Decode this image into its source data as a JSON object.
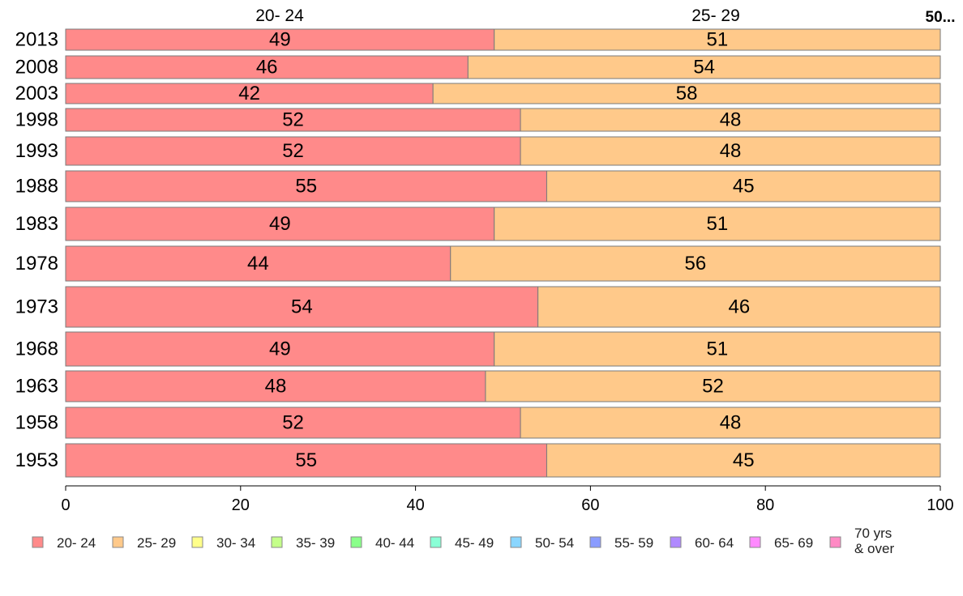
{
  "chart_data": {
    "type": "bar",
    "orientation": "horizontal",
    "stacked": true,
    "categories": [
      "2013",
      "2008",
      "2003",
      "1998",
      "1993",
      "1988",
      "1983",
      "1978",
      "1973",
      "1968",
      "1963",
      "1958",
      "1953"
    ],
    "series": [
      {
        "name": "20- 24",
        "color": "#ff8a8a",
        "values": [
          49,
          46,
          42,
          52,
          52,
          55,
          49,
          44,
          54,
          49,
          48,
          52,
          55
        ]
      },
      {
        "name": "25- 29",
        "color": "#ffc98a",
        "values": [
          51,
          54,
          58,
          48,
          48,
          45,
          51,
          56,
          46,
          51,
          52,
          48,
          45
        ]
      },
      {
        "name": "30- 34",
        "color": "#ffff8a",
        "values": [
          0,
          0,
          0,
          0,
          0,
          0,
          0,
          0,
          0,
          0,
          0,
          0,
          0
        ]
      },
      {
        "name": "35- 39",
        "color": "#c4ff8a",
        "values": [
          0,
          0,
          0,
          0,
          0,
          0,
          0,
          0,
          0,
          0,
          0,
          0,
          0
        ]
      },
      {
        "name": "40- 44",
        "color": "#8aff8a",
        "values": [
          0,
          0,
          0,
          0,
          0,
          0,
          0,
          0,
          0,
          0,
          0,
          0,
          0
        ]
      },
      {
        "name": "45- 49",
        "color": "#8affd6",
        "values": [
          0,
          0,
          0,
          0,
          0,
          0,
          0,
          0,
          0,
          0,
          0,
          0,
          0
        ]
      },
      {
        "name": "50- 54",
        "color": "#8ad6ff",
        "values": [
          0,
          0,
          0,
          0,
          0,
          0,
          0,
          0,
          0,
          0,
          0,
          0,
          0
        ]
      },
      {
        "name": "55- 59",
        "color": "#8a9cff",
        "values": [
          0,
          0,
          0,
          0,
          0,
          0,
          0,
          0,
          0,
          0,
          0,
          0,
          0
        ]
      },
      {
        "name": "60- 64",
        "color": "#b08aff",
        "values": [
          0,
          0,
          0,
          0,
          0,
          0,
          0,
          0,
          0,
          0,
          0,
          0,
          0
        ]
      },
      {
        "name": "65- 69",
        "color": "#ff8aff",
        "values": [
          0,
          0,
          0,
          0,
          0,
          0,
          0,
          0,
          0,
          0,
          0,
          0,
          0
        ]
      },
      {
        "name": "70 yrs\n& over",
        "color": "#ff8ac4",
        "values": [
          0,
          0,
          0,
          0,
          0,
          0,
          0,
          0,
          0,
          0,
          0,
          0,
          0
        ]
      }
    ],
    "top_labels": [
      "20- 24",
      "25- 29"
    ],
    "top_right_label": "50...",
    "xlim": [
      0,
      100
    ],
    "xticks": [
      0,
      20,
      40,
      60,
      80,
      100
    ],
    "grid": false,
    "legend_position": "bottom",
    "title": "",
    "xlabel": "",
    "ylabel": ""
  }
}
